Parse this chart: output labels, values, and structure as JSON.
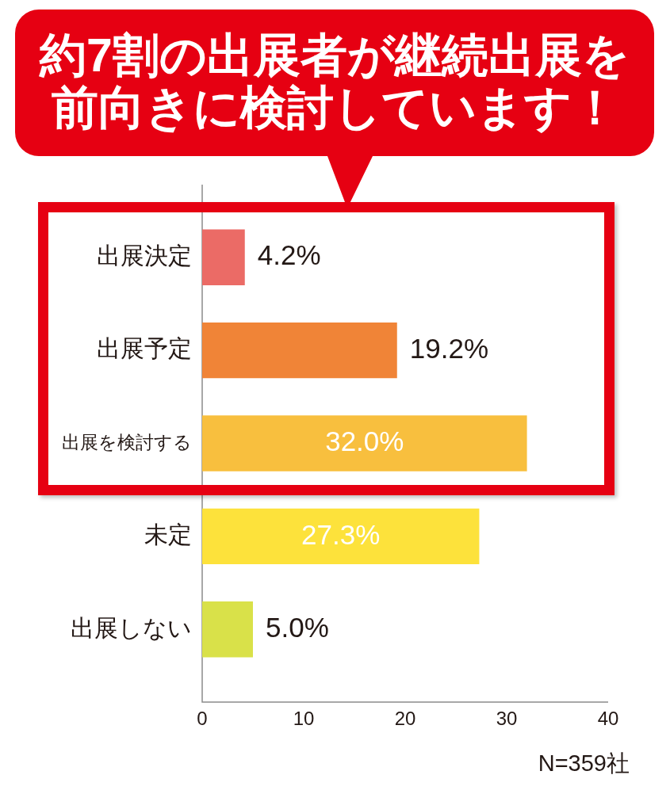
{
  "chart_data": {
    "type": "bar",
    "orientation": "horizontal",
    "title": "約7割の出展者が継続出展を前向きに検討しています！",
    "categories": [
      "出展決定",
      "出展予定",
      "出展を検討する",
      "未定",
      "出展しない"
    ],
    "values": [
      4.2,
      19.2,
      32.0,
      27.3,
      5.0
    ],
    "colors": [
      "#eb6b66",
      "#f08437",
      "#f8bf3e",
      "#fde23b",
      "#d9e149"
    ],
    "value_labels": [
      "4.2%",
      "19.2%",
      "32.0%",
      "27.3%",
      "5.0%"
    ],
    "xlim": [
      0,
      40
    ],
    "xticks": [
      0,
      10,
      20,
      30,
      40
    ],
    "annotations": [
      "N=359社"
    ]
  }
}
